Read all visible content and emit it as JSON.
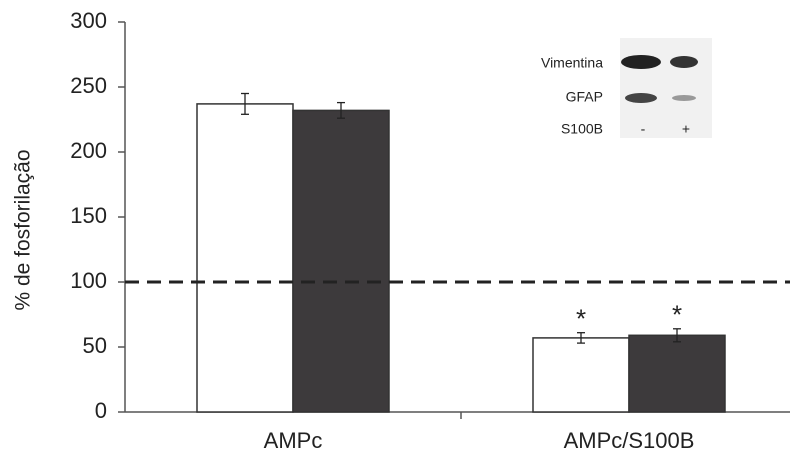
{
  "chart_data": {
    "type": "bar",
    "y_label": "% de fosforilação",
    "categories": [
      "AMPc",
      "AMPc/S100B"
    ],
    "series": [
      {
        "color": "#ffffff",
        "values": [
          237,
          57
        ],
        "errors": [
          8,
          4
        ],
        "markers": [
          null,
          "*"
        ]
      },
      {
        "color": "#3d3a3c",
        "values": [
          232,
          59
        ],
        "errors": [
          6,
          5
        ],
        "markers": [
          null,
          "*"
        ]
      }
    ],
    "ylim": [
      0,
      300
    ],
    "yticks": [
      0,
      50,
      100,
      150,
      200,
      250,
      300
    ],
    "reference_line": {
      "value": 100,
      "style": "dashed"
    },
    "inset": {
      "labels": [
        "Vimentina",
        "GFAP",
        "S100B"
      ],
      "lanes": [
        "-",
        "+"
      ]
    }
  }
}
